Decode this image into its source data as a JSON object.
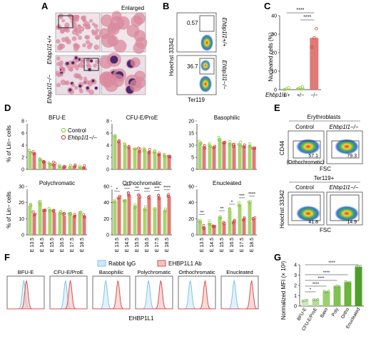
{
  "colors": {
    "control": "#8cc63e",
    "knockout": "#d4383d",
    "control_fill": "#a6d66c",
    "ko_fill": "#e07a77",
    "rabbit": "#7fc3e8",
    "ehbp": "#d9534f",
    "green_bar": "#5aa840",
    "red_bar": "#e75d4f"
  },
  "panels": {
    "A": {
      "letter": "A",
      "top_label": "Enlarged",
      "row_labels": [
        "Ehbp1l1+/+",
        "Ehbp1l1−/−"
      ]
    },
    "B": {
      "letter": "B",
      "ylabel": "Hoechst 33342",
      "xlabel": "Ter119",
      "gates": [
        "0.57",
        "36.7"
      ],
      "row_labels": [
        "Ehbp1l1+/+",
        "Ehbp1l1−/−"
      ]
    },
    "C": {
      "letter": "C",
      "ylabel": "Nucleated cells (%)",
      "yticks": [
        "0",
        "10",
        "20",
        "30",
        "40"
      ],
      "gene_label": "Ehbp1l1",
      "categories": [
        "+/+",
        "+/−",
        "−/−"
      ],
      "sig": [
        "****",
        "****"
      ]
    },
    "D": {
      "letter": "D",
      "legend": [
        "Control",
        "Ehbp1l1−/−"
      ],
      "ylabel": "% of Lin− cells",
      "xticks": [
        "E 13.5",
        "E 14.5",
        "E 15.5",
        "E 16.5",
        "E 17.5",
        "E 18.5"
      ],
      "subplots": [
        {
          "title": "BFU-E",
          "yticks": [
            "0",
            "2",
            "4",
            "6",
            "8"
          ]
        },
        {
          "title": "CFU-E/ProE",
          "yticks": [
            "0",
            "2",
            "4",
            "6",
            "8"
          ]
        },
        {
          "title": "Basophilic",
          "yticks": [
            "0",
            "5",
            "10",
            "15",
            "20"
          ]
        },
        {
          "title": "Polychromatic",
          "yticks": [
            "0",
            "10",
            "20",
            "30"
          ]
        },
        {
          "title": "Orthochromatic",
          "yticks": [
            "0",
            "20",
            "40",
            "60"
          ]
        },
        {
          "title": "Enucleated",
          "yticks": [
            "0",
            "20",
            "40",
            "60"
          ]
        }
      ]
    },
    "E": {
      "letter": "E",
      "top_title": "Erythroblasts",
      "bottom_title": "Ter119+",
      "col_labels": [
        "Control",
        "Ehbp1l1−/−"
      ],
      "top_ylabel": "CD44",
      "bottom_ylabel": "Hoechst 33342",
      "xlabel": "FSC",
      "gate_top": "(Orthochromatic)",
      "values_top": [
        "57.1",
        "79.3"
      ],
      "values_bottom": [
        "41.8",
        "14.9"
      ]
    },
    "F": {
      "letter": "F",
      "legend": [
        "Rabbit IgG",
        "EHBP1L1 Ab"
      ],
      "titles": [
        "BFU-E",
        "CFU-E/ProE",
        "Basophilic",
        "Polychromatic",
        "Orthochromatic",
        "Enucleated"
      ],
      "xlabel": "EHBP1L1"
    },
    "G": {
      "letter": "G",
      "ylabel": "Normalized MFI (× 10³)",
      "yticks": [
        "0",
        "1",
        "2",
        "3",
        "4"
      ],
      "categories": [
        "BFU-E",
        "CFU-E/ProE",
        "Baso",
        "Poly",
        "Ortho",
        "Enucleated"
      ],
      "sig": [
        "*",
        "****",
        "****",
        "****",
        "****",
        "****"
      ]
    }
  },
  "chart_data": [
    {
      "type": "bar",
      "panel": "C",
      "categories": [
        "+/+",
        "+/−",
        "−/−"
      ],
      "values": [
        0.5,
        1,
        28
      ],
      "ylabel": "Nucleated cells (%)",
      "ylim": [
        0,
        40
      ]
    },
    {
      "type": "bar",
      "panel": "D",
      "title": "BFU-E",
      "categories": [
        "E 13.5",
        "E 14.5",
        "E 15.5",
        "E 16.5",
        "E 17.5",
        "E 18.5"
      ],
      "ylim": [
        0,
        8
      ],
      "series": [
        {
          "name": "Control",
          "values": [
            3.0,
            1.6,
            1.0,
            0.5,
            0.5,
            0.5
          ]
        },
        {
          "name": "Ehbp1l1−/−",
          "values": [
            2.8,
            1.4,
            0.9,
            0.5,
            0.6,
            0.4
          ]
        }
      ]
    },
    {
      "type": "bar",
      "panel": "D",
      "title": "CFU-E/ProE",
      "categories": [
        "E 13.5",
        "E 14.5",
        "E 15.5",
        "E 16.5",
        "E 17.5",
        "E 18.5"
      ],
      "ylim": [
        0,
        8
      ],
      "series": [
        {
          "name": "Control",
          "values": [
            5.4,
            4.0,
            3.4,
            3.3,
            2.9,
            2.4
          ]
        },
        {
          "name": "Ehbp1l1−/−",
          "values": [
            4.5,
            3.5,
            3.2,
            3.0,
            2.6,
            2.2
          ]
        }
      ]
    },
    {
      "type": "bar",
      "panel": "D",
      "title": "Basophilic",
      "categories": [
        "E 13.5",
        "E 14.5",
        "E 15.5",
        "E 16.5",
        "E 17.5",
        "E 18.5"
      ],
      "ylim": [
        0,
        20
      ],
      "series": [
        {
          "name": "Control",
          "values": [
            11.0,
            10.0,
            12.5,
            11.0,
            10.5,
            10.0
          ]
        },
        {
          "name": "Ehbp1l1−/−",
          "values": [
            9.5,
            9.5,
            11.0,
            10.0,
            9.5,
            9.0
          ]
        }
      ]
    },
    {
      "type": "bar",
      "panel": "D",
      "title": "Polychromatic",
      "categories": [
        "E 13.5",
        "E 14.5",
        "E 15.5",
        "E 16.5",
        "E 17.5",
        "E 18.5"
      ],
      "ylim": [
        0,
        30
      ],
      "series": [
        {
          "name": "Control",
          "values": [
            18,
            20,
            16,
            14,
            14,
            13
          ]
        },
        {
          "name": "Ehbp1l1−/−",
          "values": [
            13,
            16,
            14,
            12,
            12,
            12
          ]
        }
      ]
    },
    {
      "type": "bar",
      "panel": "D",
      "title": "Orthochromatic",
      "categories": [
        "E 13.5",
        "E 14.5",
        "E 15.5",
        "E 16.5",
        "E 17.5",
        "E 18.5"
      ],
      "ylim": [
        0,
        60
      ],
      "series": [
        {
          "name": "Control",
          "values": [
            41,
            44,
            36,
            33,
            31,
            30
          ]
        },
        {
          "name": "Ehbp1l1−/−",
          "values": [
            46,
            50,
            47,
            46,
            47,
            48
          ]
        }
      ],
      "significance": [
        "*",
        "****",
        "**",
        "***",
        "***",
        "****"
      ]
    },
    {
      "type": "bar",
      "panel": "D",
      "title": "Enucleated",
      "categories": [
        "E 13.5",
        "E 14.5",
        "E 15.5",
        "E 16.5",
        "E 17.5",
        "E 18.5"
      ],
      "ylim": [
        0,
        60
      ],
      "series": [
        {
          "name": "Control",
          "values": [
            17,
            15,
            22,
            30,
            38,
            40
          ]
        },
        {
          "name": "Ehbp1l1−/−",
          "values": [
            10,
            12,
            13,
            17,
            20,
            20
          ]
        }
      ],
      "significance": [
        "**",
        "",
        "**",
        "*",
        "***",
        "****"
      ]
    },
    {
      "type": "bar",
      "panel": "G",
      "categories": [
        "BFU-E",
        "CFU-E/ProE",
        "Baso",
        "Poly",
        "Ortho",
        "Enucleated"
      ],
      "values": [
        0.5,
        0.6,
        1.4,
        1.9,
        2.3,
        3.8
      ],
      "ylabel": "Normalized MFI (× 10³)",
      "ylim": [
        0,
        4
      ]
    }
  ]
}
